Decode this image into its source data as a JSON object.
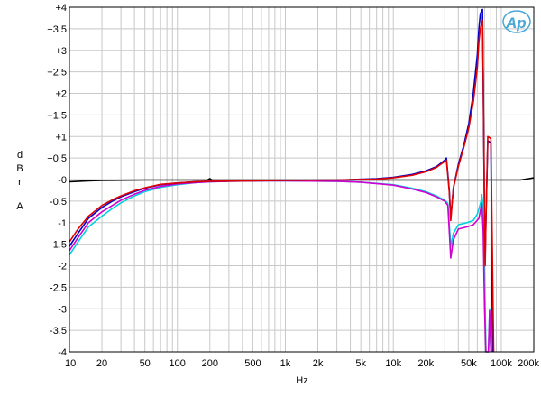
{
  "chart_data": {
    "type": "line",
    "xlabel": "Hz",
    "ylabel": "dBr A",
    "x_scale": "log",
    "xlim": [
      10,
      200000
    ],
    "ylim": [
      -4,
      4
    ],
    "grid": true,
    "logo": "Ap",
    "x_tick_labels": [
      {
        "value": 10,
        "label": "10"
      },
      {
        "value": 20,
        "label": "20"
      },
      {
        "value": 50,
        "label": "50"
      },
      {
        "value": 100,
        "label": "100"
      },
      {
        "value": 200,
        "label": "200"
      },
      {
        "value": 500,
        "label": "500"
      },
      {
        "value": 1000,
        "label": "1k"
      },
      {
        "value": 2000,
        "label": "2k"
      },
      {
        "value": 5000,
        "label": "5k"
      },
      {
        "value": 10000,
        "label": "10k"
      },
      {
        "value": 20000,
        "label": "20k"
      },
      {
        "value": 50000,
        "label": "50k"
      },
      {
        "value": 100000,
        "label": "100k"
      },
      {
        "value": 200000,
        "label": "200k"
      }
    ],
    "y_tick_labels": [
      {
        "value": 4,
        "label": "+4"
      },
      {
        "value": 3.5,
        "label": "+3.5"
      },
      {
        "value": 3,
        "label": "+3"
      },
      {
        "value": 2.5,
        "label": "+2.5"
      },
      {
        "value": 2,
        "label": "+2"
      },
      {
        "value": 1.5,
        "label": "+1.5"
      },
      {
        "value": 1,
        "label": "+1"
      },
      {
        "value": 0.5,
        "label": "+0.5"
      },
      {
        "value": 0,
        "label": "-0"
      },
      {
        "value": -0.5,
        "label": "-0.5"
      },
      {
        "value": -1,
        "label": "-1"
      },
      {
        "value": -1.5,
        "label": "-1.5"
      },
      {
        "value": -2,
        "label": "-2"
      },
      {
        "value": -2.5,
        "label": "-2.5"
      },
      {
        "value": -3,
        "label": "-3"
      },
      {
        "value": -3.5,
        "label": "-3.5"
      },
      {
        "value": -4,
        "label": "-4"
      }
    ],
    "series": [
      {
        "color": "#000000",
        "points": [
          [
            10,
            -0.05
          ],
          [
            15,
            -0.03
          ],
          [
            20,
            -0.02
          ],
          [
            50,
            -0.01
          ],
          [
            190,
            -0.01
          ],
          [
            200,
            0.02
          ],
          [
            210,
            -0.01
          ],
          [
            1000,
            -0.01
          ],
          [
            10000,
            -0.01
          ],
          [
            30000,
            -0.01
          ],
          [
            70000,
            -0.01
          ],
          [
            100000,
            -0.01
          ],
          [
            150000,
            -0.01
          ],
          [
            180000,
            0.02
          ],
          [
            200000,
            0.04
          ]
        ]
      },
      {
        "color": "#00d0e0",
        "points": [
          [
            10,
            -1.75
          ],
          [
            12,
            -1.45
          ],
          [
            15,
            -1.1
          ],
          [
            20,
            -0.85
          ],
          [
            25,
            -0.67
          ],
          [
            30,
            -0.54
          ],
          [
            40,
            -0.38
          ],
          [
            50,
            -0.28
          ],
          [
            70,
            -0.18
          ],
          [
            100,
            -0.12
          ],
          [
            150,
            -0.07
          ],
          [
            200,
            -0.05
          ],
          [
            500,
            -0.03
          ],
          [
            1000,
            -0.03
          ],
          [
            3000,
            -0.04
          ],
          [
            5000,
            -0.06
          ],
          [
            10000,
            -0.12
          ],
          [
            15000,
            -0.2
          ],
          [
            20000,
            -0.28
          ],
          [
            25000,
            -0.38
          ],
          [
            30000,
            -0.48
          ],
          [
            32000,
            -0.55
          ],
          [
            34000,
            -1.55
          ],
          [
            36000,
            -1.25
          ],
          [
            40000,
            -1.05
          ],
          [
            48000,
            -1.0
          ],
          [
            55000,
            -0.95
          ],
          [
            60000,
            -0.8
          ],
          [
            65000,
            -0.5
          ],
          [
            66000,
            -0.35
          ],
          [
            67000,
            -0.5
          ],
          [
            70000,
            -2.0
          ],
          [
            72000,
            -4.0
          ],
          [
            76000,
            -4.0
          ],
          [
            78000,
            -3.0
          ],
          [
            80000,
            -4.0
          ]
        ]
      },
      {
        "color": "#d000d0",
        "points": [
          [
            10,
            -1.65
          ],
          [
            12,
            -1.35
          ],
          [
            15,
            -1.0
          ],
          [
            20,
            -0.75
          ],
          [
            25,
            -0.6
          ],
          [
            30,
            -0.48
          ],
          [
            40,
            -0.34
          ],
          [
            50,
            -0.25
          ],
          [
            70,
            -0.16
          ],
          [
            100,
            -0.1
          ],
          [
            150,
            -0.07
          ],
          [
            200,
            -0.05
          ],
          [
            500,
            -0.03
          ],
          [
            1000,
            -0.03
          ],
          [
            3000,
            -0.04
          ],
          [
            5000,
            -0.06
          ],
          [
            10000,
            -0.13
          ],
          [
            15000,
            -0.22
          ],
          [
            20000,
            -0.3
          ],
          [
            25000,
            -0.4
          ],
          [
            30000,
            -0.5
          ],
          [
            32000,
            -0.6
          ],
          [
            34000,
            -1.82
          ],
          [
            36000,
            -1.4
          ],
          [
            40000,
            -1.15
          ],
          [
            48000,
            -1.1
          ],
          [
            55000,
            -1.05
          ],
          [
            62000,
            -0.9
          ],
          [
            66000,
            -0.55
          ],
          [
            68000,
            -1.2
          ],
          [
            70000,
            -3.0
          ],
          [
            72000,
            -4.0
          ],
          [
            76000,
            -4.0
          ],
          [
            78000,
            -3.05
          ],
          [
            80000,
            -4.0
          ]
        ]
      },
      {
        "color": "#0000c8",
        "points": [
          [
            10,
            -1.55
          ],
          [
            12,
            -1.25
          ],
          [
            15,
            -0.9
          ],
          [
            20,
            -0.65
          ],
          [
            25,
            -0.5
          ],
          [
            30,
            -0.4
          ],
          [
            40,
            -0.28
          ],
          [
            50,
            -0.2
          ],
          [
            70,
            -0.12
          ],
          [
            100,
            -0.08
          ],
          [
            150,
            -0.05
          ],
          [
            200,
            -0.04
          ],
          [
            500,
            -0.03
          ],
          [
            1000,
            -0.02
          ],
          [
            3000,
            -0.01
          ],
          [
            7000,
            0.02
          ],
          [
            10000,
            0.05
          ],
          [
            15000,
            0.12
          ],
          [
            20000,
            0.2
          ],
          [
            25000,
            0.3
          ],
          [
            30000,
            0.45
          ],
          [
            31000,
            0.5
          ],
          [
            33000,
            -0.25
          ],
          [
            34000,
            -0.9
          ],
          [
            36000,
            -0.2
          ],
          [
            40000,
            0.35
          ],
          [
            45000,
            0.8
          ],
          [
            50000,
            1.3
          ],
          [
            55000,
            2.0
          ],
          [
            60000,
            2.9
          ],
          [
            62000,
            3.5
          ],
          [
            64000,
            3.85
          ],
          [
            67000,
            3.95
          ],
          [
            70000,
            -1.0
          ],
          [
            71000,
            -1.8
          ],
          [
            72000,
            -1.0
          ],
          [
            75000,
            0.9
          ],
          [
            80000,
            0.85
          ],
          [
            83000,
            -4.0
          ]
        ]
      },
      {
        "color": "#e00000",
        "points": [
          [
            10,
            -1.45
          ],
          [
            12,
            -1.15
          ],
          [
            15,
            -0.85
          ],
          [
            20,
            -0.6
          ],
          [
            25,
            -0.47
          ],
          [
            30,
            -0.38
          ],
          [
            40,
            -0.26
          ],
          [
            50,
            -0.19
          ],
          [
            70,
            -0.11
          ],
          [
            100,
            -0.08
          ],
          [
            150,
            -0.05
          ],
          [
            200,
            -0.04
          ],
          [
            500,
            -0.03
          ],
          [
            1000,
            -0.02
          ],
          [
            3000,
            -0.01
          ],
          [
            7000,
            0.01
          ],
          [
            10000,
            0.04
          ],
          [
            15000,
            0.1
          ],
          [
            20000,
            0.18
          ],
          [
            25000,
            0.28
          ],
          [
            30000,
            0.42
          ],
          [
            31000,
            0.45
          ],
          [
            33000,
            -0.3
          ],
          [
            34000,
            -0.95
          ],
          [
            36000,
            -0.2
          ],
          [
            40000,
            0.3
          ],
          [
            45000,
            0.75
          ],
          [
            50000,
            1.2
          ],
          [
            55000,
            1.8
          ],
          [
            60000,
            2.6
          ],
          [
            62000,
            3.2
          ],
          [
            64000,
            3.5
          ],
          [
            67000,
            3.7
          ],
          [
            68000,
            2.5
          ],
          [
            70000,
            -1.0
          ],
          [
            71000,
            -2.0
          ],
          [
            72000,
            -1.0
          ],
          [
            75000,
            1.0
          ],
          [
            80000,
            0.95
          ],
          [
            85000,
            -4.0
          ]
        ]
      }
    ]
  }
}
